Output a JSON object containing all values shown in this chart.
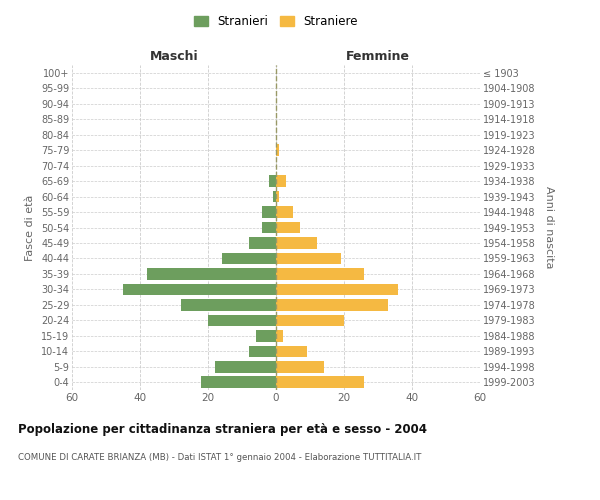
{
  "age_groups": [
    "0-4",
    "5-9",
    "10-14",
    "15-19",
    "20-24",
    "25-29",
    "30-34",
    "35-39",
    "40-44",
    "45-49",
    "50-54",
    "55-59",
    "60-64",
    "65-69",
    "70-74",
    "75-79",
    "80-84",
    "85-89",
    "90-94",
    "95-99",
    "100+"
  ],
  "birth_years": [
    "1999-2003",
    "1994-1998",
    "1989-1993",
    "1984-1988",
    "1979-1983",
    "1974-1978",
    "1969-1973",
    "1964-1968",
    "1959-1963",
    "1954-1958",
    "1949-1953",
    "1944-1948",
    "1939-1943",
    "1934-1938",
    "1929-1933",
    "1924-1928",
    "1919-1923",
    "1914-1918",
    "1909-1913",
    "1904-1908",
    "≤ 1903"
  ],
  "males": [
    22,
    18,
    8,
    6,
    20,
    28,
    45,
    38,
    16,
    8,
    4,
    4,
    1,
    2,
    0,
    0,
    0,
    0,
    0,
    0,
    0
  ],
  "females": [
    26,
    14,
    9,
    2,
    20,
    33,
    36,
    26,
    19,
    12,
    7,
    5,
    1,
    3,
    0,
    1,
    0,
    0,
    0,
    0,
    0
  ],
  "male_color": "#6d9e5e",
  "female_color": "#f5b942",
  "grid_color": "#cccccc",
  "dashed_line_color": "#999966",
  "label_color": "#666666",
  "title": "Popolazione per cittadinanza straniera per età e sesso - 2004",
  "subtitle": "COMUNE DI CARATE BRIANZA (MB) - Dati ISTAT 1° gennaio 2004 - Elaborazione TUTTITALIA.IT",
  "header_left": "Maschi",
  "header_right": "Femmine",
  "ylabel_left": "Fasce di età",
  "ylabel_right": "Anni di nascita",
  "legend_male": "Stranieri",
  "legend_female": "Straniere",
  "xlim": 60,
  "bar_height": 0.75
}
